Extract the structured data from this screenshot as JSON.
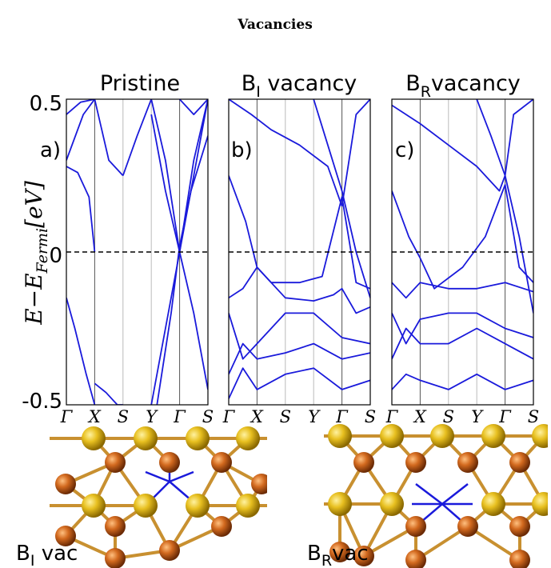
{
  "figure_title": "Vacancies",
  "y_axis": {
    "label_main": "E−E",
    "label_sub": "Fermi",
    "label_unit": "[eV]",
    "tick_top": "0.5",
    "tick_mid": "0",
    "tick_bottom": "-0.5"
  },
  "panels": [
    {
      "title_main": "Pristine",
      "title_sub": "",
      "title_rest": "",
      "label": "a)"
    },
    {
      "title_main": "B",
      "title_sub": "I",
      "title_rest": " vacancy",
      "label": "b)"
    },
    {
      "title_main": "B",
      "title_sub": "R",
      "title_rest": "vacancy",
      "label": "c)"
    }
  ],
  "images": [
    {
      "caption_main": "B",
      "caption_sub": "I",
      "caption_rest": " vac"
    },
    {
      "caption_main": "B",
      "caption_sub": "R",
      "caption_rest": "vac"
    }
  ],
  "colors": {
    "bands": "#1a1adb",
    "grid": "#bbbbbb",
    "fermi": "#000000"
  },
  "chart_data": {
    "type": "line",
    "ylabel": "E−E_Fermi [eV]",
    "ylim": [
      -0.5,
      0.5
    ],
    "fermi_level": 0,
    "kpath": [
      "Γ",
      "X",
      "S",
      "Y",
      "Γ",
      "S"
    ],
    "kpath_positions": [
      0,
      1,
      2,
      3,
      4,
      5
    ],
    "panels": [
      {
        "title": "Pristine",
        "series": [
          {
            "x": [
              0,
              0.5,
              1
            ],
            "y": [
              0.45,
              0.49,
              0.5
            ]
          },
          {
            "x": [
              0,
              0.6,
              1
            ],
            "y": [
              0.3,
              0.45,
              0.5
            ]
          },
          {
            "x": [
              1,
              1.5,
              2
            ],
            "y": [
              0.5,
              0.3,
              0.25
            ]
          },
          {
            "x": [
              2,
              2.5,
              3
            ],
            "y": [
              0.25,
              0.38,
              0.5
            ]
          },
          {
            "x": [
              3,
              3.5,
              4
            ],
            "y": [
              0.5,
              0.3,
              0.0
            ]
          },
          {
            "x": [
              4,
              4.5,
              5
            ],
            "y": [
              0.0,
              0.3,
              0.5
            ]
          },
          {
            "x": [
              0,
              0.4,
              0.8,
              1
            ],
            "y": [
              0.28,
              0.26,
              0.18,
              0.0
            ]
          },
          {
            "x": [
              0,
              0.3,
              0.7,
              1
            ],
            "y": [
              -0.15,
              -0.25,
              -0.4,
              -0.5
            ]
          },
          {
            "x": [
              1,
              1.4,
              1.8,
              2
            ],
            "y": [
              -0.43,
              -0.46,
              -0.5,
              -0.5
            ]
          },
          {
            "x": [
              3,
              3.5,
              4,
              4.5,
              5
            ],
            "y": [
              -0.5,
              -0.25,
              0.0,
              0.25,
              0.5
            ]
          },
          {
            "x": [
              3,
              3.5,
              4,
              4.5,
              5
            ],
            "y": [
              0.45,
              0.2,
              0.0,
              -0.2,
              -0.45
            ]
          },
          {
            "x": [
              3.2,
              3.7,
              4,
              4.4,
              5
            ],
            "y": [
              -0.5,
              -0.2,
              0.02,
              0.2,
              0.38
            ]
          },
          {
            "x": [
              4,
              4.5,
              5
            ],
            "y": [
              0.5,
              0.45,
              0.5
            ]
          }
        ]
      },
      {
        "title": "B_I vacancy",
        "series": [
          {
            "x": [
              0,
              0.8,
              1.5,
              2.5,
              3.5,
              4
            ],
            "y": [
              0.5,
              0.45,
              0.4,
              0.35,
              0.28,
              0.15
            ]
          },
          {
            "x": [
              4,
              4.5,
              5
            ],
            "y": [
              0.15,
              0.45,
              0.5
            ]
          },
          {
            "x": [
              0,
              0.6,
              1,
              1.5,
              2.5,
              3.3,
              4,
              4.5,
              5
            ],
            "y": [
              0.25,
              0.1,
              -0.05,
              -0.1,
              -0.1,
              -0.08,
              0.18,
              -0.1,
              -0.12
            ]
          },
          {
            "x": [
              0,
              0.5,
              1,
              2,
              3,
              3.7,
              4,
              4.5,
              5
            ],
            "y": [
              -0.15,
              -0.12,
              -0.05,
              -0.15,
              -0.16,
              -0.14,
              -0.12,
              -0.2,
              -0.18
            ]
          },
          {
            "x": [
              0,
              0.5,
              1,
              2,
              3,
              4,
              5
            ],
            "y": [
              -0.2,
              -0.35,
              -0.3,
              -0.2,
              -0.2,
              -0.28,
              -0.3
            ]
          },
          {
            "x": [
              0,
              0.5,
              1,
              2,
              3,
              4,
              5
            ],
            "y": [
              -0.4,
              -0.3,
              -0.35,
              -0.33,
              -0.3,
              -0.35,
              -0.33
            ]
          },
          {
            "x": [
              0,
              0.5,
              1,
              2,
              3,
              4,
              5
            ],
            "y": [
              -0.48,
              -0.38,
              -0.45,
              -0.4,
              -0.38,
              -0.45,
              -0.42
            ]
          },
          {
            "x": [
              3,
              3.5,
              4,
              4.5,
              5
            ],
            "y": [
              0.5,
              0.35,
              0.2,
              0.0,
              -0.15
            ]
          }
        ]
      },
      {
        "title": "B_R vacancy",
        "series": [
          {
            "x": [
              0,
              1,
              2,
              3,
              3.8,
              4
            ],
            "y": [
              0.48,
              0.42,
              0.35,
              0.28,
              0.2,
              0.25
            ]
          },
          {
            "x": [
              4,
              4.3,
              5
            ],
            "y": [
              0.25,
              0.45,
              0.5
            ]
          },
          {
            "x": [
              0,
              0.6,
              1,
              1.5,
              2.5,
              3.3,
              4,
              4.5,
              5
            ],
            "y": [
              0.2,
              0.05,
              -0.02,
              -0.12,
              -0.05,
              0.05,
              0.22,
              -0.05,
              -0.1
            ]
          },
          {
            "x": [
              0,
              0.5,
              1,
              2,
              3,
              4,
              5
            ],
            "y": [
              -0.1,
              -0.15,
              -0.1,
              -0.12,
              -0.12,
              -0.1,
              -0.13
            ]
          },
          {
            "x": [
              0,
              0.5,
              1,
              2,
              3,
              4,
              5
            ],
            "y": [
              -0.2,
              -0.3,
              -0.22,
              -0.2,
              -0.2,
              -0.25,
              -0.28
            ]
          },
          {
            "x": [
              0,
              0.5,
              1,
              2,
              3,
              4,
              5
            ],
            "y": [
              -0.35,
              -0.25,
              -0.3,
              -0.3,
              -0.25,
              -0.3,
              -0.35
            ]
          },
          {
            "x": [
              0,
              0.5,
              1,
              2,
              3,
              4,
              5
            ],
            "y": [
              -0.45,
              -0.4,
              -0.42,
              -0.45,
              -0.4,
              -0.45,
              -0.42
            ]
          },
          {
            "x": [
              3,
              3.5,
              4,
              4.5,
              5
            ],
            "y": [
              0.5,
              0.38,
              0.25,
              0.05,
              -0.2
            ]
          }
        ]
      }
    ]
  }
}
